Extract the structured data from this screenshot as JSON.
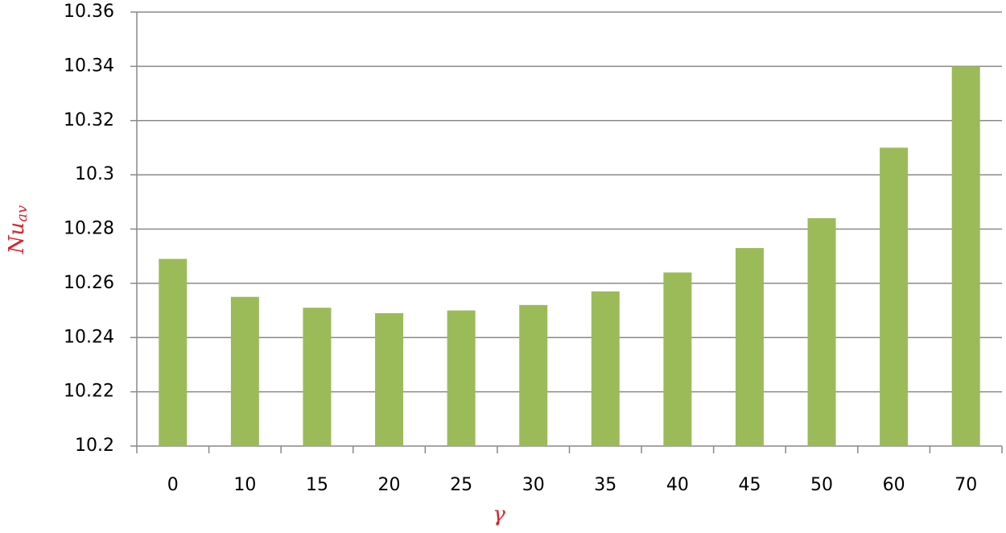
{
  "chart_data": {
    "type": "bar",
    "xlabel": "γ",
    "ylabel": "Nu",
    "ylabel_subscript": "av",
    "categories": [
      "0",
      "10",
      "15",
      "20",
      "25",
      "30",
      "35",
      "40",
      "45",
      "50",
      "60",
      "70"
    ],
    "values": [
      10.269,
      10.255,
      10.251,
      10.249,
      10.25,
      10.252,
      10.257,
      10.264,
      10.273,
      10.284,
      10.31,
      10.34
    ],
    "color": "#9bbb59",
    "ylim": [
      10.2,
      10.36
    ],
    "yticks": [
      10.2,
      10.22,
      10.24,
      10.26,
      10.28,
      10.3,
      10.32,
      10.34,
      10.36
    ],
    "grid": true
  }
}
